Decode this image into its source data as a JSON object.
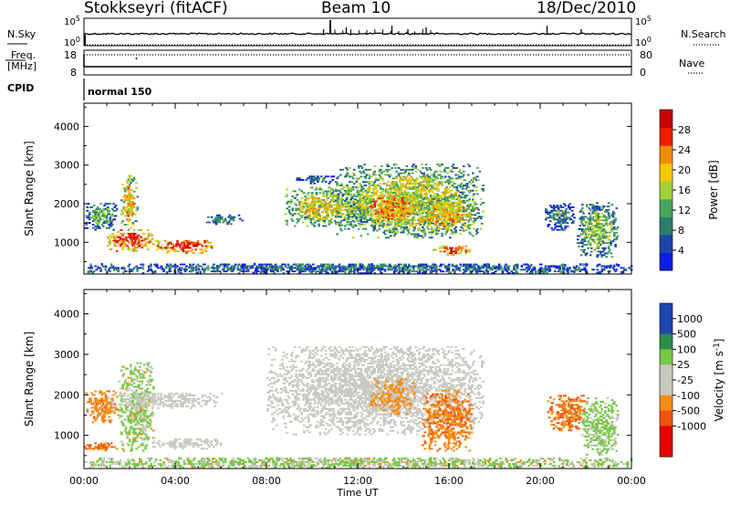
{
  "header": {
    "station": "Stokkseyri (fitACF)",
    "beam": "Beam 10",
    "date": "18/Dec/2010"
  },
  "colors": {
    "power": [
      "#0a1ee6",
      "#1e46aa",
      "#2d7d6e",
      "#46a55a",
      "#a0d232",
      "#f5c800",
      "#f08c00",
      "#f01e00",
      "#c80000"
    ],
    "velocity": [
      "#e60000",
      "#f0550a",
      "#f58c14",
      "#c8c8c0",
      "#78c846",
      "#2d8c4b",
      "#1e46b4"
    ]
  },
  "chart_data": [
    {
      "type": "line",
      "panel": "noise-search",
      "series": [
        {
          "name": "N.Sky",
          "style": "solid"
        },
        {
          "name": "N.Search",
          "style": "dotted"
        }
      ],
      "ytick_labels_left": [
        "10^5",
        "10^0"
      ],
      "ytick_labels_right": [
        "10^5",
        "10^0"
      ],
      "spikes_hours": [
        10.5,
        11.5,
        13.5,
        14.2,
        15.0,
        20.3,
        21.8
      ],
      "baseline": "10^0"
    },
    {
      "type": "line",
      "panel": "freq-nave",
      "series": [
        {
          "name": "Freq.",
          "style": "dotted",
          "value": 18
        },
        {
          "name": "Nave",
          "style": "solid",
          "value": 0
        }
      ],
      "left_label": "Freq.",
      "left_unit": "[MHz]",
      "ytick_labels_left": [
        "18",
        "8"
      ],
      "ytick_labels_right": [
        "80",
        "0"
      ]
    },
    {
      "type": "table",
      "panel": "cpid",
      "label": "CPID",
      "mode": "normal 150"
    },
    {
      "type": "heatmap",
      "panel": "power",
      "ylabel": "Slant Range [km]",
      "yticks": [
        1000,
        2000,
        3000,
        4000
      ],
      "ylim": [
        180,
        4600
      ],
      "xlim": [
        0,
        24
      ],
      "colorbar_label": "Power [dB]",
      "colorbar_ticks": [
        4,
        8,
        12,
        16,
        20,
        24,
        28
      ],
      "colorbar_range": [
        0,
        32
      ],
      "regions": [
        {
          "t": [
            0.0,
            1.5
          ],
          "r": [
            1300,
            2000
          ],
          "v": 12
        },
        {
          "t": [
            1.6,
            2.3
          ],
          "r": [
            1300,
            2700
          ],
          "v": 20
        },
        {
          "t": [
            1.0,
            3.0
          ],
          "r": [
            750,
            1300
          ],
          "v": 26
        },
        {
          "t": [
            3.0,
            5.6
          ],
          "r": [
            700,
            1050
          ],
          "v": 27
        },
        {
          "t": [
            5.2,
            6.9
          ],
          "r": [
            1450,
            1700
          ],
          "v": 10
        },
        {
          "t": [
            8.8,
            12.5
          ],
          "r": [
            1400,
            2400
          ],
          "v": 18
        },
        {
          "t": [
            9.3,
            11.0
          ],
          "r": [
            2500,
            2700
          ],
          "v": 8
        },
        {
          "t": [
            11.0,
            17.5
          ],
          "r": [
            1100,
            3000
          ],
          "v": 17
        },
        {
          "t": [
            12.0,
            14.8
          ],
          "r": [
            1400,
            2300
          ],
          "v": 22
        },
        {
          "t": [
            14.6,
            17.2
          ],
          "r": [
            1200,
            2200
          ],
          "v": 20
        },
        {
          "t": [
            15.3,
            17.0
          ],
          "r": [
            650,
            900
          ],
          "v": 26
        },
        {
          "t": [
            20.2,
            21.5
          ],
          "r": [
            1300,
            2000
          ],
          "v": 9
        },
        {
          "t": [
            21.6,
            23.4
          ],
          "r": [
            600,
            2000
          ],
          "v": 14
        },
        {
          "t": [
            0.0,
            24.0
          ],
          "r": [
            180,
            450
          ],
          "v": 8
        }
      ]
    },
    {
      "type": "heatmap",
      "panel": "velocity",
      "xlabel": "Time UT",
      "ylabel": "Slant Range [km]",
      "yticks": [
        1000,
        2000,
        3000,
        4000
      ],
      "ylim": [
        180,
        4600
      ],
      "xlim": [
        0,
        24
      ],
      "xtick_labels": [
        "00:00",
        "04:00",
        "08:00",
        "12:00",
        "16:00",
        "20:00",
        "00:00"
      ],
      "colorbar_label": "Velocity [m s^-1]",
      "colorbar_ticks": [
        "1000",
        "500",
        "100",
        "25",
        "-25",
        "-100",
        "-500",
        "-1000"
      ],
      "regions": [
        {
          "t": [
            0.0,
            1.5
          ],
          "r": [
            1300,
            2100
          ],
          "v": "-200"
        },
        {
          "t": [
            1.5,
            3.0
          ],
          "r": [
            600,
            2800
          ],
          "v": "50"
        },
        {
          "t": [
            1.0,
            6.0
          ],
          "r": [
            1650,
            2050
          ],
          "v": "0"
        },
        {
          "t": [
            3.0,
            6.0
          ],
          "r": [
            650,
            900
          ],
          "v": "0"
        },
        {
          "t": [
            0.0,
            1.5
          ],
          "r": [
            600,
            800
          ],
          "v": "-300"
        },
        {
          "t": [
            8.0,
            17.5
          ],
          "r": [
            1000,
            3200
          ],
          "v": "0"
        },
        {
          "t": [
            12.5,
            14.5
          ],
          "r": [
            1500,
            2400
          ],
          "v": "-150"
        },
        {
          "t": [
            14.8,
            17.0
          ],
          "r": [
            600,
            2100
          ],
          "v": "-250"
        },
        {
          "t": [
            20.3,
            22.0
          ],
          "r": [
            1100,
            2000
          ],
          "v": "-300"
        },
        {
          "t": [
            21.8,
            23.4
          ],
          "r": [
            500,
            1900
          ],
          "v": "80"
        },
        {
          "t": [
            0.0,
            24.0
          ],
          "r": [
            180,
            430
          ],
          "v": "40"
        }
      ]
    }
  ]
}
